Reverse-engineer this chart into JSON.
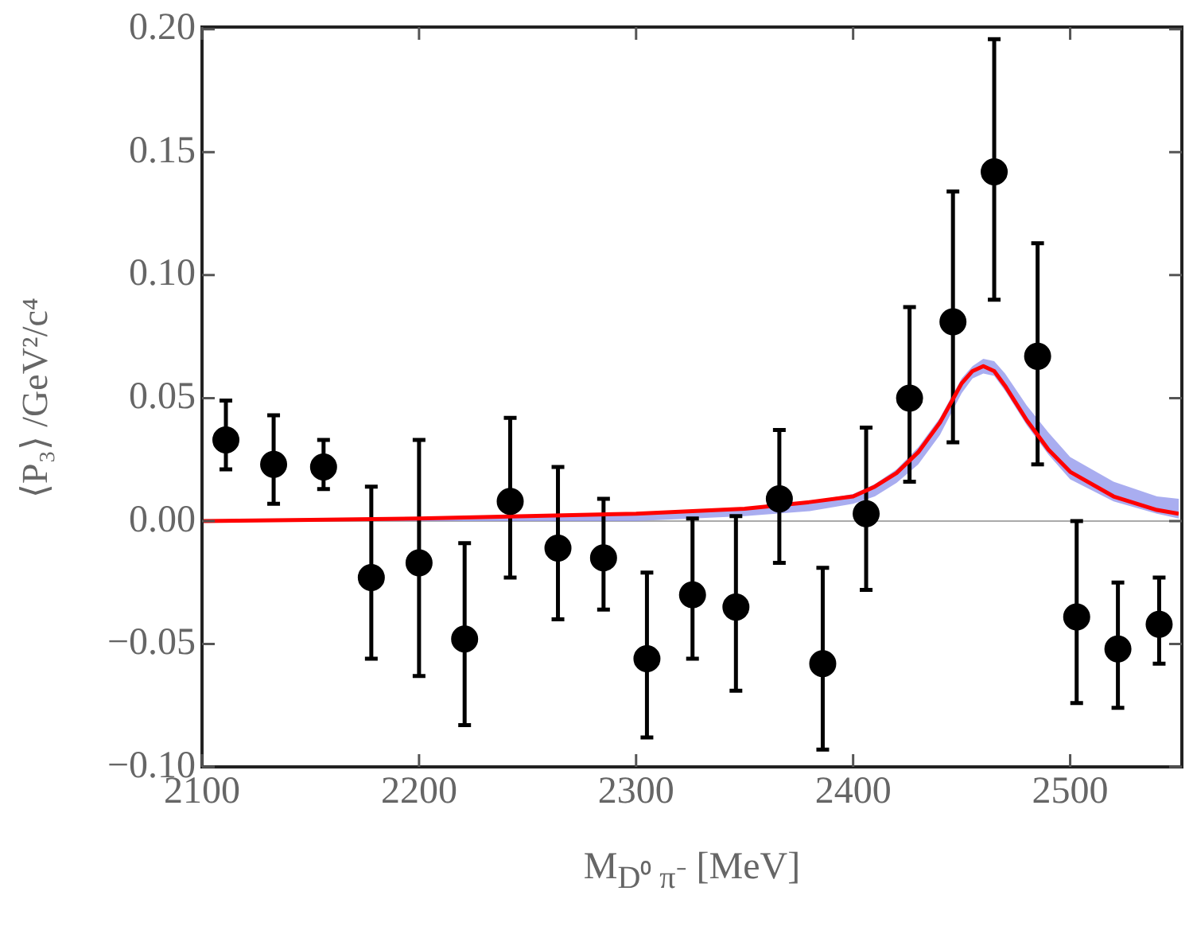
{
  "chart_data": {
    "type": "scatter",
    "xlabel": "M$_{D⁰ π⁻}$ [MeV]",
    "ylabel": "⟨P₃⟩ /GeV²/c⁴",
    "xlim": [
      2100,
      2550
    ],
    "xticks": [
      2100,
      2200,
      2300,
      2400,
      2500
    ],
    "ylim": [
      -0.1,
      0.2
    ],
    "yticks": [
      {
        "value": -0.1,
        "label": "−0.10"
      },
      {
        "value": -0.05,
        "label": "−0.05"
      },
      {
        "value": 0,
        "label": "0.00"
      },
      {
        "value": 0.05,
        "label": "0.05"
      },
      {
        "value": 0.1,
        "label": "0.10"
      },
      {
        "value": 0.15,
        "label": "0.15"
      },
      {
        "value": 0.2,
        "label": "0.20"
      }
    ],
    "grid": false,
    "legend": false,
    "line_style": "solid",
    "ref_lines": [
      {
        "axis": "y",
        "value": 0,
        "color": "#aaaaaa"
      }
    ],
    "series": [
      {
        "type": "line",
        "color": "#ff0000",
        "x": [
          2100,
          2150,
          2200,
          2250,
          2300,
          2350,
          2380,
          2400,
          2410,
          2420,
          2430,
          2440,
          2450,
          2455,
          2460,
          2465,
          2470,
          2480,
          2490,
          2500,
          2520,
          2540,
          2550
        ],
        "values": [
          0.0,
          0.0005,
          0.001,
          0.002,
          0.003,
          0.005,
          0.0077,
          0.01,
          0.014,
          0.0195,
          0.028,
          0.04,
          0.056,
          0.061,
          0.063,
          0.061,
          0.055,
          0.041,
          0.029,
          0.02,
          0.01,
          0.0045,
          0.003
        ],
        "upper": [
          0.0005,
          0.001,
          0.0015,
          0.0025,
          0.0035,
          0.0055,
          0.008,
          0.011,
          0.015,
          0.021,
          0.03,
          0.042,
          0.058,
          0.063,
          0.066,
          0.065,
          0.06,
          0.047,
          0.036,
          0.026,
          0.016,
          0.01,
          0.009
        ],
        "lower": [
          0,
          0,
          0,
          0,
          0,
          0.002,
          0.004,
          0.007,
          0.01,
          0.0155,
          0.023,
          0.035,
          0.052,
          0.058,
          0.06,
          0.059,
          0.053,
          0.039,
          0.027,
          0.017,
          0.008,
          0.003,
          0.001
        ]
      },
      {
        "color": "#000000",
        "marker": "circle",
        "x": [
          2111,
          2133,
          2156,
          2178,
          2200,
          2221,
          2242,
          2264,
          2285,
          2305,
          2326,
          2346,
          2366,
          2386,
          2406,
          2426,
          2446,
          2465,
          2485,
          2503,
          2522,
          2541
        ],
        "values": [
          0.033,
          0.023,
          0.022,
          -0.023,
          -0.017,
          -0.048,
          0.008,
          -0.011,
          -0.015,
          -0.056,
          -0.03,
          -0.035,
          0.009,
          -0.058,
          0.003,
          0.05,
          0.081,
          0.142,
          0.067,
          -0.039,
          -0.052,
          -0.042
        ],
        "errors": [
          [
            0.021,
            0.049
          ],
          [
            0.007,
            0.043
          ],
          [
            0.013,
            0.033
          ],
          [
            -0.056,
            0.014
          ],
          [
            -0.063,
            0.033
          ],
          [
            -0.083,
            -0.009
          ],
          [
            -0.023,
            0.042
          ],
          [
            -0.04,
            0.022
          ],
          [
            -0.036,
            0.009
          ],
          [
            -0.088,
            -0.021
          ],
          [
            -0.056,
            0.001
          ],
          [
            -0.069,
            0.002
          ],
          [
            -0.017,
            0.037
          ],
          [
            -0.093,
            -0.019
          ],
          [
            -0.028,
            0.038
          ],
          [
            0.016,
            0.087
          ],
          [
            0.032,
            0.134
          ],
          [
            0.09,
            0.196
          ],
          [
            0.023,
            0.113
          ],
          [
            -0.074,
            0.0
          ],
          [
            -0.076,
            -0.025
          ],
          [
            -0.058,
            -0.023
          ]
        ]
      }
    ]
  }
}
